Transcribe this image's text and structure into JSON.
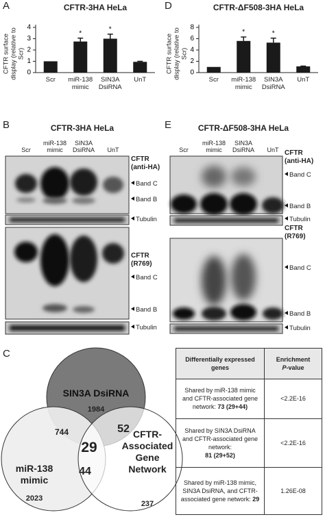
{
  "panel_labels": [
    "A",
    "D",
    "B",
    "E",
    "C"
  ],
  "chart_data": [
    {
      "type": "bar",
      "title": "CFTR-3HA HeLa",
      "y_label": "CFTR surface display (relative to Scr)",
      "categories": [
        "Scr",
        "miR-138 mimic",
        "SIN3A DsiRNA",
        "UnT"
      ],
      "values": [
        1,
        2.75,
        3.0,
        0.95
      ],
      "errors": [
        null,
        0.3,
        0.4,
        0.05
      ],
      "star_labels": [
        null,
        "*",
        "*",
        null
      ],
      "color": "#1a1a1a",
      "ylim": [
        0,
        4
      ],
      "yticks": [
        0,
        1,
        2,
        3,
        4
      ]
    },
    {
      "type": "bar",
      "title": "CFTR-ΔF508-3HA HeLa",
      "y_label": "CFTR surface display (relative to Scr)",
      "categories": [
        "Scr",
        "miR-138 mimic",
        "SIN3A DsiRNA",
        "UnT"
      ],
      "values": [
        1,
        5.6,
        5.3,
        1.1
      ],
      "errors": [
        null,
        0.7,
        0.8,
        0.05
      ],
      "star_labels": [
        null,
        "*",
        "*",
        null
      ],
      "color": "#1a1a1a",
      "ylim": [
        0,
        8
      ],
      "yticks": [
        0,
        2,
        4,
        6,
        8
      ]
    }
  ],
  "blots": [
    {
      "title": "CFTR-3HA HeLa",
      "lanes": [
        "Scr",
        "miR-138 mimic",
        "SIN3A DsiRNA",
        "UnT"
      ],
      "markers": [
        "CFTR (anti-HA)",
        "Band C",
        "Band B",
        "Tubulin",
        "CFTR (R769)",
        "Band C",
        "Band B",
        "Tubulin"
      ]
    },
    {
      "title": "CFTR-ΔF508-3HA HeLa",
      "lanes": [
        "Scr",
        "miR-138 mimic",
        "SIN3A DsiRNA",
        "UnT"
      ],
      "markers": [
        "CFTR (anti-HA)",
        "Band C",
        "Band B",
        "Tubulin",
        "CFTR (R769)",
        "Band C",
        "Band B",
        "Tubulin"
      ]
    }
  ],
  "venn": {
    "sets": [
      "SIN3A DsiRNA",
      "miR-138 mimic",
      "CFTR-Associated Gene Network"
    ],
    "set_only": [
      1984,
      2023,
      237
    ],
    "sin3a_mir138": 744,
    "sin3a_cftr": 52,
    "mir138_cftr": 44,
    "all": 29
  },
  "table": {
    "header": [
      "Differentially expressed genes",
      [
        "Enrichment",
        "P",
        "-value"
      ]
    ],
    "rows": [
      [
        [
          "Shared by miR-138 mimic and CFTR-associated gene network:",
          "73 (29+44)"
        ],
        "<2.2E-16"
      ],
      [
        [
          "Shared by SIN3A DsiRNA and CFTR-associated gene network:",
          "81 (29+52)"
        ],
        "<2.2E-16"
      ],
      [
        [
          "Shared by miR-138 mimic, SIN3A DsiRNA, and CFTR-associated gene network:",
          "29"
        ],
        "1.26E-08"
      ]
    ]
  }
}
